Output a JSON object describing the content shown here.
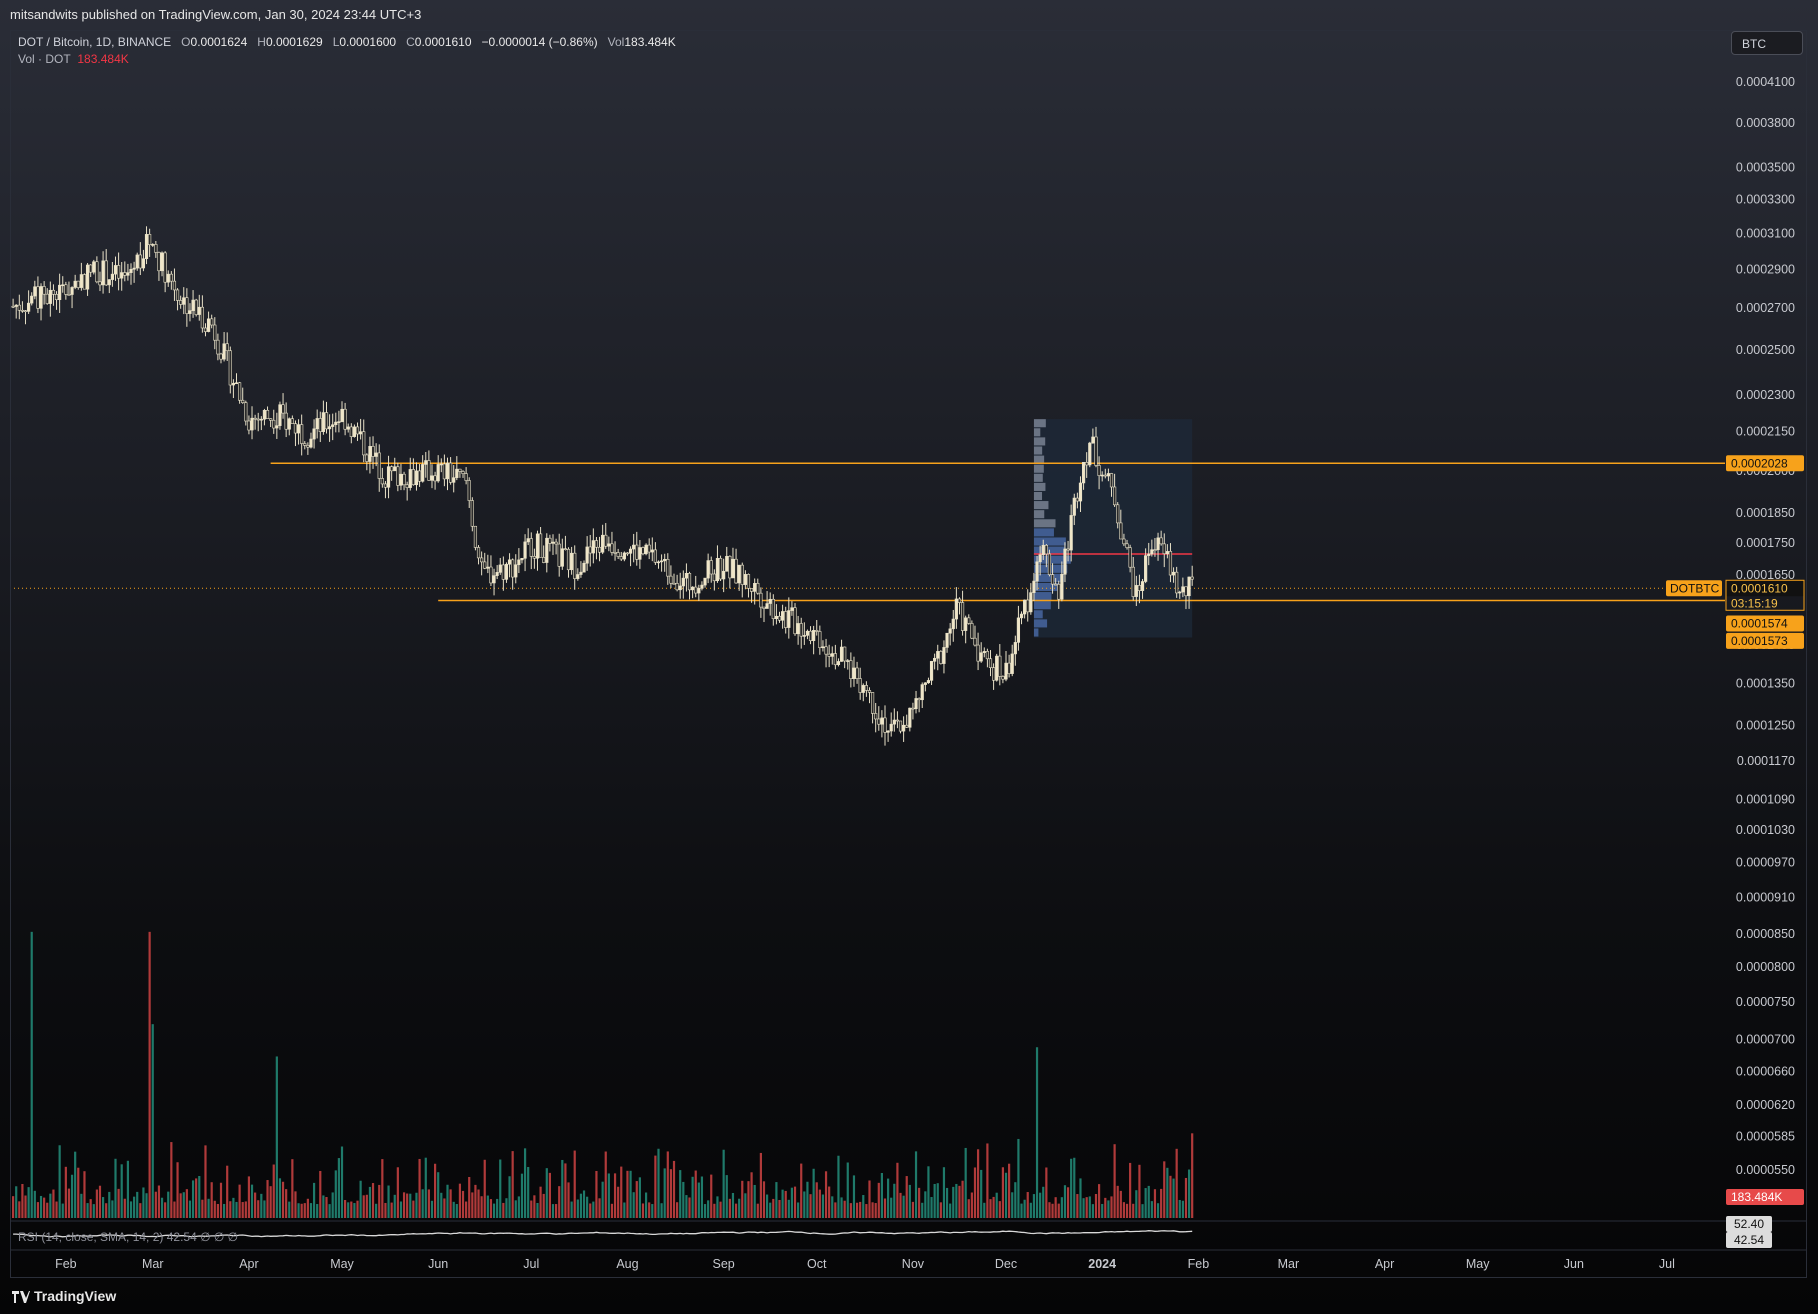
{
  "header": {
    "published": "mitsandwits published on TradingView.com, Jan 30, 2024 23:44 UTC+3",
    "currency": "BTC"
  },
  "legend": {
    "symbol": "DOT / Bitcoin, 1D, BINANCE",
    "o_label": "O",
    "o": "0.0001624",
    "h_label": "H",
    "h": "0.0001629",
    "l_label": "L",
    "l": "0.0001600",
    "c_label": "C",
    "c": "0.0001610",
    "change": "−0.0000014 (−0.86%)",
    "vol_label": "Vol",
    "vol": "183.484K",
    "vol_series_label": "Vol · DOT",
    "vol_series_value": "183.484K"
  },
  "rsi": {
    "label": "RSI (14, close, SMA, 14, 2)",
    "value": "42.54",
    "extra": "∅ ∅ ∅",
    "tags": [
      "52.40",
      "42.54"
    ]
  },
  "price_axis": {
    "ticks": [
      "0.0004100",
      "0.0003800",
      "0.0003500",
      "0.0003300",
      "0.0003100",
      "0.0002900",
      "0.0002700",
      "0.0002500",
      "0.0002300",
      "0.0002150",
      "0.0002000",
      "0.0001850",
      "0.0001750",
      "0.0001650",
      "0.0001450",
      "0.0001350",
      "0.0001250",
      "0.0001170",
      "0.0001090",
      "0.0001030",
      "0.0000970",
      "0.0000910",
      "0.0000850",
      "0.0000800",
      "0.0000750",
      "0.0000700",
      "0.0000660",
      "0.0000620",
      "0.0000585",
      "0.0000550"
    ],
    "tags": {
      "resistance": "0.0002028",
      "symbol": "DOTBTC",
      "last": "0.0001610",
      "countdown": "03:15:19",
      "support1": "0.0001574",
      "support2": "0.0001573",
      "volume": "183.484K"
    }
  },
  "time_axis": {
    "ticks": [
      "Feb",
      "Mar",
      "Apr",
      "May",
      "Jun",
      "Jul",
      "Aug",
      "Sep",
      "Oct",
      "Nov",
      "Dec",
      "2024",
      "Feb",
      "Mar",
      "Apr",
      "May",
      "Jun",
      "Jul"
    ]
  },
  "colors": {
    "up": "#f0e6c8",
    "down": "#f0e6c8",
    "vol_up": "#1f7a6a",
    "vol_down": "#b03a3a",
    "level": "#f7a21b",
    "poc": "#f23645",
    "rsi": "#d9d9d9"
  },
  "chart_data": {
    "type": "candlestick",
    "symbol": "DOT / Bitcoin, 1D, BINANCE",
    "scale": "log",
    "ylim": [
      5.3e-05,
      0.00044
    ],
    "x_range": [
      "2023-01-14",
      "2024-07-31"
    ],
    "last": {
      "date": "2024-01-30",
      "open": 0.0001624,
      "high": 0.0001629,
      "low": 0.00016,
      "close": 0.000161,
      "volume_k": 183.484
    },
    "close_path": [
      {
        "date": "2023-01-15",
        "close": 0.000271
      },
      {
        "date": "2023-02-01",
        "close": 0.000279
      },
      {
        "date": "2023-02-10",
        "close": 0.00029
      },
      {
        "date": "2023-02-20",
        "close": 0.000285
      },
      {
        "date": "2023-02-28",
        "close": 0.000306
      },
      {
        "date": "2023-03-10",
        "close": 0.000275
      },
      {
        "date": "2023-03-20",
        "close": 0.000262
      },
      {
        "date": "2023-04-01",
        "close": 0.00022
      },
      {
        "date": "2023-04-10",
        "close": 0.000222
      },
      {
        "date": "2023-04-20",
        "close": 0.000214
      },
      {
        "date": "2023-05-01",
        "close": 0.000222
      },
      {
        "date": "2023-05-15",
        "close": 0.000198
      },
      {
        "date": "2023-06-01",
        "close": 0.0002
      },
      {
        "date": "2023-06-10",
        "close": 0.000196
      },
      {
        "date": "2023-06-15",
        "close": 0.000165
      },
      {
        "date": "2023-06-25",
        "close": 0.000168
      },
      {
        "date": "2023-07-01",
        "close": 0.000175
      },
      {
        "date": "2023-07-15",
        "close": 0.000168
      },
      {
        "date": "2023-07-25",
        "close": 0.000176
      },
      {
        "date": "2023-08-10",
        "close": 0.00017
      },
      {
        "date": "2023-08-20",
        "close": 0.000162
      },
      {
        "date": "2023-09-01",
        "close": 0.000168
      },
      {
        "date": "2023-09-10",
        "close": 0.000162
      },
      {
        "date": "2023-09-20",
        "close": 0.000153
      },
      {
        "date": "2023-10-01",
        "close": 0.000148
      },
      {
        "date": "2023-10-15",
        "close": 0.000136
      },
      {
        "date": "2023-10-25",
        "close": 0.000123
      },
      {
        "date": "2023-11-01",
        "close": 0.000128
      },
      {
        "date": "2023-11-10",
        "close": 0.000143
      },
      {
        "date": "2023-11-15",
        "close": 0.000155
      },
      {
        "date": "2023-11-25",
        "close": 0.00014
      },
      {
        "date": "2023-12-01",
        "close": 0.000138
      },
      {
        "date": "2023-12-08",
        "close": 0.000158
      },
      {
        "date": "2023-12-12",
        "close": 0.000175
      },
      {
        "date": "2023-12-18",
        "close": 0.00016
      },
      {
        "date": "2023-12-25",
        "close": 0.0002
      },
      {
        "date": "2023-12-28",
        "close": 0.000211
      },
      {
        "date": "2024-01-05",
        "close": 0.00019
      },
      {
        "date": "2024-01-12",
        "close": 0.000158
      },
      {
        "date": "2024-01-17",
        "close": 0.000176
      },
      {
        "date": "2024-01-22",
        "close": 0.00017
      },
      {
        "date": "2024-01-26",
        "close": 0.000159
      },
      {
        "date": "2024-01-30",
        "close": 0.000161
      }
    ],
    "horizontal_levels": [
      {
        "price": 0.0002028,
        "from": "2023-04-08"
      },
      {
        "price": 0.0001574,
        "from": "2023-06-01"
      }
    ],
    "volume_profile_range": {
      "from": "2023-12-10",
      "to": "2024-01-30",
      "high": 0.00022,
      "low": 0.000147,
      "poc": 0.0001715
    },
    "volume_k": {
      "peaks": [
        {
          "date": "2023-01-21",
          "value": 620
        },
        {
          "date": "2023-02-28",
          "value": 620
        },
        {
          "date": "2023-03-01",
          "value": 420
        },
        {
          "date": "2023-04-10",
          "value": 350
        },
        {
          "date": "2023-12-11",
          "value": 370
        },
        {
          "date": "2024-01-30",
          "value": 183.484
        }
      ]
    },
    "rsi_latest": 42.54,
    "rsi_sma": 52.4
  }
}
